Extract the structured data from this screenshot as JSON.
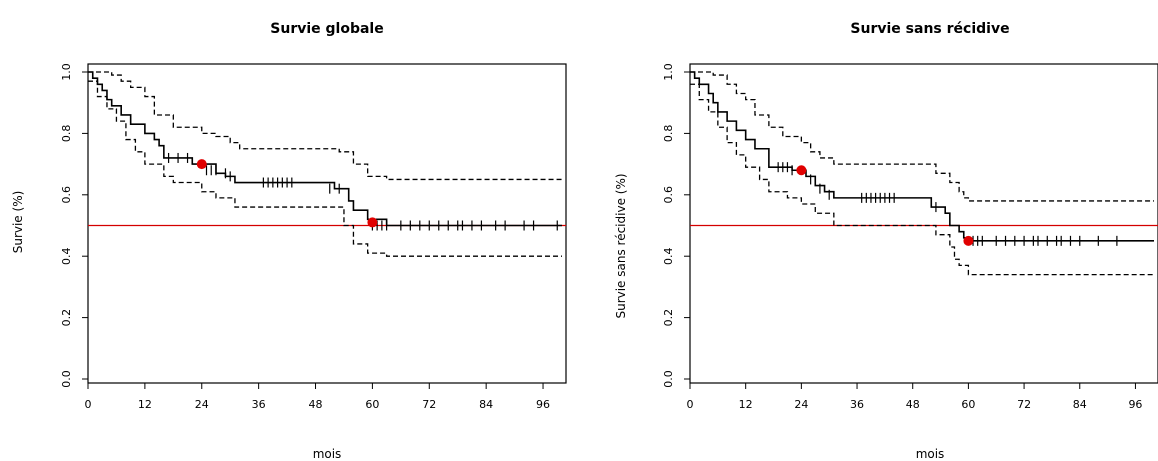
{
  "chart_data": [
    {
      "type": "line",
      "title": "Survie globale",
      "xlabel": "mois",
      "ylabel": "Survie (%)",
      "xlim": [
        0,
        100
      ],
      "ylim": [
        0,
        1
      ],
      "xticks": [
        0,
        12,
        24,
        36,
        48,
        60,
        72,
        84,
        96
      ],
      "yticks": [
        0.0,
        0.2,
        0.4,
        0.6,
        0.8,
        1.0
      ],
      "ytick_labels": [
        "0.0",
        "0.2",
        "0.4",
        "0.6",
        "0.8",
        "1.0"
      ],
      "reference_line": {
        "y": 0.5,
        "color": "#d40000"
      },
      "series": [
        {
          "role": "estimate",
          "style": "solid",
          "x": [
            0,
            1,
            2,
            3,
            4,
            5,
            7,
            9,
            12,
            14,
            15,
            16,
            20,
            22,
            27,
            29,
            31,
            36,
            40,
            44,
            48,
            52,
            55,
            56,
            59,
            63,
            80,
            100
          ],
          "y": [
            1.0,
            0.98,
            0.96,
            0.94,
            0.91,
            0.89,
            0.86,
            0.83,
            0.8,
            0.78,
            0.76,
            0.72,
            0.72,
            0.7,
            0.67,
            0.66,
            0.64,
            0.64,
            0.64,
            0.64,
            0.64,
            0.62,
            0.58,
            0.55,
            0.52,
            0.5,
            0.5,
            0.5
          ]
        },
        {
          "role": "upper_ci",
          "style": "dashed",
          "x": [
            0,
            2,
            5,
            7,
            9,
            12,
            14,
            18,
            24,
            27,
            30,
            32,
            40,
            48,
            53,
            56,
            59,
            63,
            80,
            100
          ],
          "y": [
            1.0,
            1.0,
            0.99,
            0.97,
            0.95,
            0.92,
            0.86,
            0.82,
            0.8,
            0.79,
            0.77,
            0.75,
            0.75,
            0.75,
            0.74,
            0.7,
            0.66,
            0.65,
            0.65,
            0.65
          ]
        },
        {
          "role": "lower_ci",
          "style": "dashed",
          "x": [
            0,
            2,
            4,
            6,
            8,
            10,
            12,
            16,
            18,
            24,
            27,
            31,
            40,
            48,
            54,
            56,
            59,
            63,
            80,
            100
          ],
          "y": [
            0.97,
            0.92,
            0.88,
            0.84,
            0.78,
            0.74,
            0.7,
            0.66,
            0.64,
            0.61,
            0.59,
            0.56,
            0.56,
            0.56,
            0.5,
            0.44,
            0.41,
            0.4,
            0.4,
            0.4
          ]
        }
      ],
      "censor_marks": [
        {
          "x": 17,
          "y": 0.72
        },
        {
          "x": 19,
          "y": 0.72
        },
        {
          "x": 21,
          "y": 0.72
        },
        {
          "x": 25,
          "y": 0.68
        },
        {
          "x": 26,
          "y": 0.68
        },
        {
          "x": 27,
          "y": 0.68
        },
        {
          "x": 29,
          "y": 0.67
        },
        {
          "x": 30,
          "y": 0.66
        },
        {
          "x": 37,
          "y": 0.64
        },
        {
          "x": 38,
          "y": 0.64
        },
        {
          "x": 39,
          "y": 0.64
        },
        {
          "x": 40,
          "y": 0.64
        },
        {
          "x": 41,
          "y": 0.64
        },
        {
          "x": 42,
          "y": 0.64
        },
        {
          "x": 43,
          "y": 0.64
        },
        {
          "x": 51,
          "y": 0.62
        },
        {
          "x": 53,
          "y": 0.62
        },
        {
          "x": 60,
          "y": 0.5
        },
        {
          "x": 61,
          "y": 0.5
        },
        {
          "x": 62,
          "y": 0.5
        },
        {
          "x": 63,
          "y": 0.5
        },
        {
          "x": 66,
          "y": 0.5
        },
        {
          "x": 68,
          "y": 0.5
        },
        {
          "x": 70,
          "y": 0.5
        },
        {
          "x": 72,
          "y": 0.5
        },
        {
          "x": 74,
          "y": 0.5
        },
        {
          "x": 76,
          "y": 0.5
        },
        {
          "x": 78,
          "y": 0.5
        },
        {
          "x": 79,
          "y": 0.5
        },
        {
          "x": 81,
          "y": 0.5
        },
        {
          "x": 83,
          "y": 0.5
        },
        {
          "x": 86,
          "y": 0.5
        },
        {
          "x": 88,
          "y": 0.5
        },
        {
          "x": 92,
          "y": 0.5
        },
        {
          "x": 94,
          "y": 0.5
        },
        {
          "x": 99,
          "y": 0.5
        }
      ],
      "highlight_points": [
        {
          "x": 24,
          "y": 0.7,
          "color": "#e00000"
        },
        {
          "x": 60,
          "y": 0.51,
          "color": "#e00000"
        }
      ]
    },
    {
      "type": "line",
      "title": "Survie sans récidive",
      "xlabel": "mois",
      "ylabel": "Survie sans récidive (%)",
      "xlim": [
        0,
        100
      ],
      "ylim": [
        0,
        1
      ],
      "xticks": [
        0,
        12,
        24,
        36,
        48,
        60,
        72,
        84,
        96
      ],
      "yticks": [
        0.0,
        0.2,
        0.4,
        0.6,
        0.8,
        1.0
      ],
      "ytick_labels": [
        "0.0",
        "0.2",
        "0.4",
        "0.6",
        "0.8",
        "1.0"
      ],
      "reference_line": {
        "y": 0.5,
        "color": "#d40000"
      },
      "series": [
        {
          "role": "estimate",
          "style": "solid",
          "x": [
            0,
            1,
            2,
            4,
            5,
            6,
            8,
            10,
            12,
            14,
            17,
            20,
            22,
            25,
            27,
            29,
            31,
            33,
            45,
            52,
            55,
            56,
            58,
            59,
            60,
            100
          ],
          "y": [
            1.0,
            0.98,
            0.96,
            0.93,
            0.9,
            0.87,
            0.84,
            0.81,
            0.78,
            0.75,
            0.69,
            0.69,
            0.68,
            0.66,
            0.63,
            0.61,
            0.59,
            0.59,
            0.59,
            0.56,
            0.54,
            0.5,
            0.48,
            0.46,
            0.45,
            0.45
          ]
        },
        {
          "role": "upper_ci",
          "style": "dashed",
          "x": [
            0,
            2,
            5,
            8,
            10,
            12,
            14,
            17,
            20,
            24,
            26,
            28,
            31,
            46,
            53,
            56,
            58,
            59,
            60,
            100
          ],
          "y": [
            1.0,
            1.0,
            0.99,
            0.96,
            0.93,
            0.91,
            0.86,
            0.82,
            0.79,
            0.77,
            0.74,
            0.72,
            0.7,
            0.7,
            0.67,
            0.64,
            0.61,
            0.59,
            0.58,
            0.58
          ]
        },
        {
          "role": "lower_ci",
          "style": "dashed",
          "x": [
            0,
            2,
            4,
            6,
            8,
            10,
            12,
            15,
            17,
            21,
            24,
            27,
            31,
            46,
            53,
            56,
            57,
            58,
            60,
            100
          ],
          "y": [
            0.96,
            0.91,
            0.87,
            0.82,
            0.77,
            0.73,
            0.69,
            0.65,
            0.61,
            0.59,
            0.57,
            0.54,
            0.5,
            0.5,
            0.47,
            0.43,
            0.39,
            0.37,
            0.34,
            0.34
          ]
        }
      ],
      "censor_marks": [
        {
          "x": 19,
          "y": 0.69
        },
        {
          "x": 20,
          "y": 0.69
        },
        {
          "x": 21,
          "y": 0.69
        },
        {
          "x": 22,
          "y": 0.68
        },
        {
          "x": 26,
          "y": 0.65
        },
        {
          "x": 28,
          "y": 0.62
        },
        {
          "x": 30,
          "y": 0.6
        },
        {
          "x": 37,
          "y": 0.59
        },
        {
          "x": 38,
          "y": 0.59
        },
        {
          "x": 39,
          "y": 0.59
        },
        {
          "x": 40,
          "y": 0.59
        },
        {
          "x": 41,
          "y": 0.59
        },
        {
          "x": 42,
          "y": 0.59
        },
        {
          "x": 43,
          "y": 0.59
        },
        {
          "x": 44,
          "y": 0.59
        },
        {
          "x": 53,
          "y": 0.56
        },
        {
          "x": 61,
          "y": 0.45
        },
        {
          "x": 62,
          "y": 0.45
        },
        {
          "x": 63,
          "y": 0.45
        },
        {
          "x": 66,
          "y": 0.45
        },
        {
          "x": 68,
          "y": 0.45
        },
        {
          "x": 70,
          "y": 0.45
        },
        {
          "x": 72,
          "y": 0.45
        },
        {
          "x": 74,
          "y": 0.45
        },
        {
          "x": 75,
          "y": 0.45
        },
        {
          "x": 77,
          "y": 0.45
        },
        {
          "x": 79,
          "y": 0.45
        },
        {
          "x": 80,
          "y": 0.45
        },
        {
          "x": 82,
          "y": 0.45
        },
        {
          "x": 84,
          "y": 0.45
        },
        {
          "x": 88,
          "y": 0.45
        },
        {
          "x": 92,
          "y": 0.45
        }
      ],
      "highlight_points": [
        {
          "x": 24,
          "y": 0.68,
          "color": "#e00000"
        },
        {
          "x": 60,
          "y": 0.45,
          "color": "#e00000"
        }
      ]
    }
  ]
}
